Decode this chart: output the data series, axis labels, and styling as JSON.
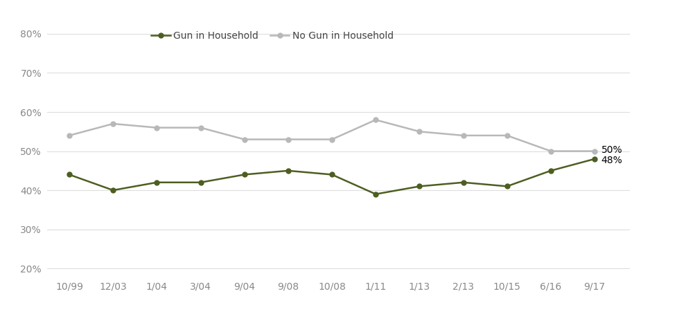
{
  "x_labels": [
    "10/99",
    "12/03",
    "1/04",
    "3/04",
    "9/04",
    "9/08",
    "10/08",
    "1/11",
    "1/13",
    "2/13",
    "10/15",
    "6/16",
    "9/17"
  ],
  "gun_values": [
    0.44,
    0.4,
    0.42,
    0.42,
    0.44,
    0.45,
    0.44,
    0.39,
    0.41,
    0.42,
    0.41,
    0.45,
    0.48
  ],
  "no_gun_values": [
    0.54,
    0.57,
    0.56,
    0.56,
    0.53,
    0.53,
    0.53,
    0.58,
    0.55,
    0.54,
    0.54,
    0.5,
    0.5
  ],
  "gun_color": "#4d5e21",
  "no_gun_color": "#b8b8b8",
  "gun_label": "Gun in Household",
  "no_gun_label": "No Gun in Household",
  "ylim": [
    0.18,
    0.82
  ],
  "yticks": [
    0.2,
    0.3,
    0.4,
    0.5,
    0.6,
    0.7,
    0.8
  ],
  "end_label_gun": "48%",
  "end_label_no_gun": "50%",
  "background_color": "#ffffff",
  "linewidth": 1.8,
  "markersize": 5,
  "tick_color": "#888888",
  "grid_color": "#dddddd"
}
